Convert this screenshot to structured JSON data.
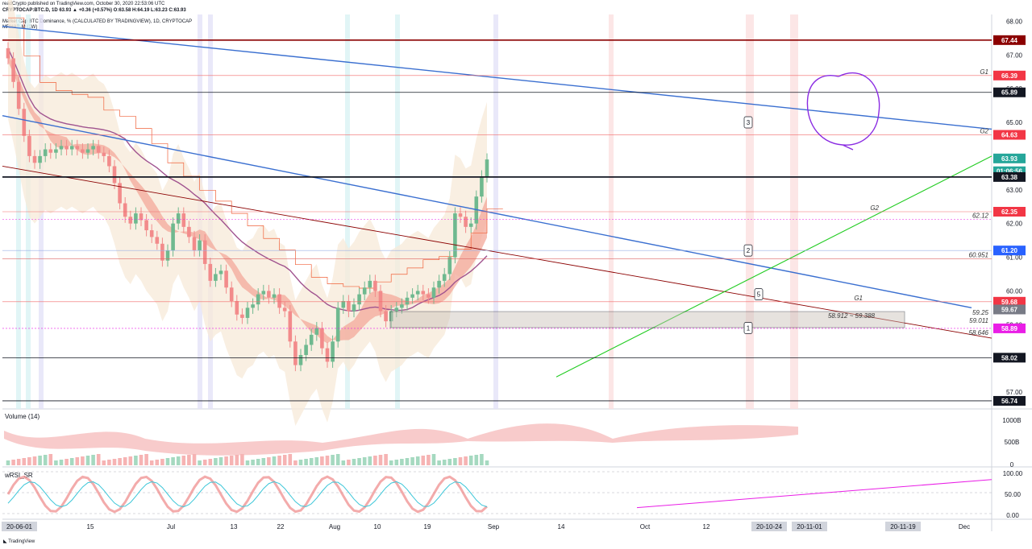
{
  "header": {
    "publisher": "readCrypto published on TradingView.com, October 30, 2020 22:53:06 UTC",
    "symbol_line": "CRYPTOCAP:BTC.D, 1D 63.93 ▲ +0.36 (+0.57%) O:63.58 H:64.19 L:63.23 C:63.93",
    "study_line1": "Market Cap BTC Dominance, % (CALCULATED BY TRADINGVIEW), 1D, CRYPTOCAP",
    "study_line2": "MRHAB-M (1W)"
  },
  "footer": {
    "brand": "TradingView"
  },
  "colors": {
    "up": "#6fb98f",
    "down": "#f28b8b",
    "ribbon": "#f3a89a",
    "sma": "#a0538f",
    "blue_line": "#3a6fd0",
    "green_line": "#22cc22",
    "dark_red": "#8b0000",
    "red_tag": "#f23645",
    "green_tag": "#26a69a",
    "blue_tag": "#2962ff",
    "black_tag": "#131722"
  },
  "chart_data": [
    {
      "type": "line",
      "title": "Market Cap BTC Dominance, %",
      "ylim": [
        56.5,
        68.2
      ],
      "y_ticks": [
        57.0,
        58.0,
        59.0,
        60.0,
        61.0,
        62.0,
        63.0,
        64.0,
        65.0,
        66.0,
        67.0,
        68.0
      ],
      "x_ticks": [
        "20-06-01",
        "15",
        "Jul",
        "13",
        "22",
        "Aug",
        "10",
        "19",
        "Sep",
        "14",
        "Oct",
        "12",
        "20-10-24",
        "20-11-01",
        "20-11-19",
        "Dec"
      ],
      "series": [
        {
          "values": [
            66.9,
            66.2,
            65.4,
            64.6,
            64.0,
            63.8,
            64.0,
            64.2,
            64.1,
            64.2,
            64.3,
            64.2,
            64.3,
            64.2,
            64.1,
            64.2,
            64.3,
            64.1,
            64.0,
            63.7,
            63.2,
            62.6,
            62.2,
            62.0,
            62.3,
            62.1,
            61.8,
            61.6,
            61.4,
            60.9,
            61.2,
            62.0,
            62.3,
            61.9,
            61.6,
            61.2,
            61.5,
            60.8,
            60.3,
            60.5,
            60.6,
            60.1,
            59.7,
            59.3,
            59.2,
            59.5,
            59.6,
            59.9,
            60.0,
            59.8,
            59.9,
            59.5,
            59.4,
            58.5,
            57.8,
            58.1,
            58.4,
            58.7,
            58.9,
            58.3,
            57.9,
            58.5,
            59.5,
            59.7,
            59.4,
            59.6,
            59.9,
            60.1,
            60.3,
            60.0,
            59.4,
            59.1,
            59.4,
            59.5,
            59.6,
            59.8,
            59.9,
            60.0,
            59.9,
            59.8,
            60.1,
            60.3,
            60.5,
            61.0,
            62.3,
            62.2,
            61.9,
            62.0,
            62.8,
            63.4,
            63.9
          ]
        }
      ],
      "price_tags": [
        {
          "label": "67.44",
          "value": 67.44,
          "color": "#8b0000"
        },
        {
          "label": "66.39",
          "value": 66.39,
          "color": "#f23645"
        },
        {
          "label": "65.89",
          "value": 65.89,
          "color": "#131722"
        },
        {
          "label": "64.63",
          "value": 64.63,
          "color": "#f23645"
        },
        {
          "label": "63.93",
          "value": 63.93,
          "color": "#26a69a"
        },
        {
          "label": "01:06:56",
          "value": 63.55,
          "color": "#26a69a"
        },
        {
          "label": "63.38",
          "value": 63.38,
          "color": "#131722"
        },
        {
          "label": "62.35",
          "value": 62.35,
          "color": "#f23645"
        },
        {
          "label": "61.20",
          "value": 61.2,
          "color": "#2962ff"
        },
        {
          "label": "59.68",
          "value": 59.68,
          "color": "#f23645"
        },
        {
          "label": "59.67",
          "value": 59.45,
          "color": "#787b86"
        },
        {
          "label": "58.89",
          "value": 58.89,
          "color": "#e91ee6"
        },
        {
          "label": "58.02",
          "value": 58.02,
          "color": "#131722"
        },
        {
          "label": "56.74",
          "value": 56.74,
          "color": "#131722"
        }
      ],
      "annotations": [
        {
          "text": "G1",
          "value": 66.39
        },
        {
          "text": "G2",
          "value": 64.63
        },
        {
          "text": "G2",
          "value": 62.35
        },
        {
          "text": "62.12",
          "value": 62.12
        },
        {
          "text": "60.951",
          "value": 60.951
        },
        {
          "text": "G1",
          "value": 59.68
        },
        {
          "text": "59.25",
          "value": 59.25
        },
        {
          "text": "59.011",
          "value": 59.011
        },
        {
          "text": "58.646",
          "value": 58.646
        },
        {
          "text": "58.912 ~ 59.388",
          "value": 59.15
        }
      ],
      "markers": [
        "1",
        "2",
        "3",
        "5"
      ]
    },
    {
      "type": "area",
      "title": "Volume (14)",
      "y_ticks": [
        "1000B",
        "500B",
        "0"
      ]
    },
    {
      "type": "line",
      "title": "wRSI_SR",
      "ylim": [
        0,
        100
      ],
      "y_ticks": [
        100.0,
        50.0,
        0.0
      ]
    }
  ]
}
